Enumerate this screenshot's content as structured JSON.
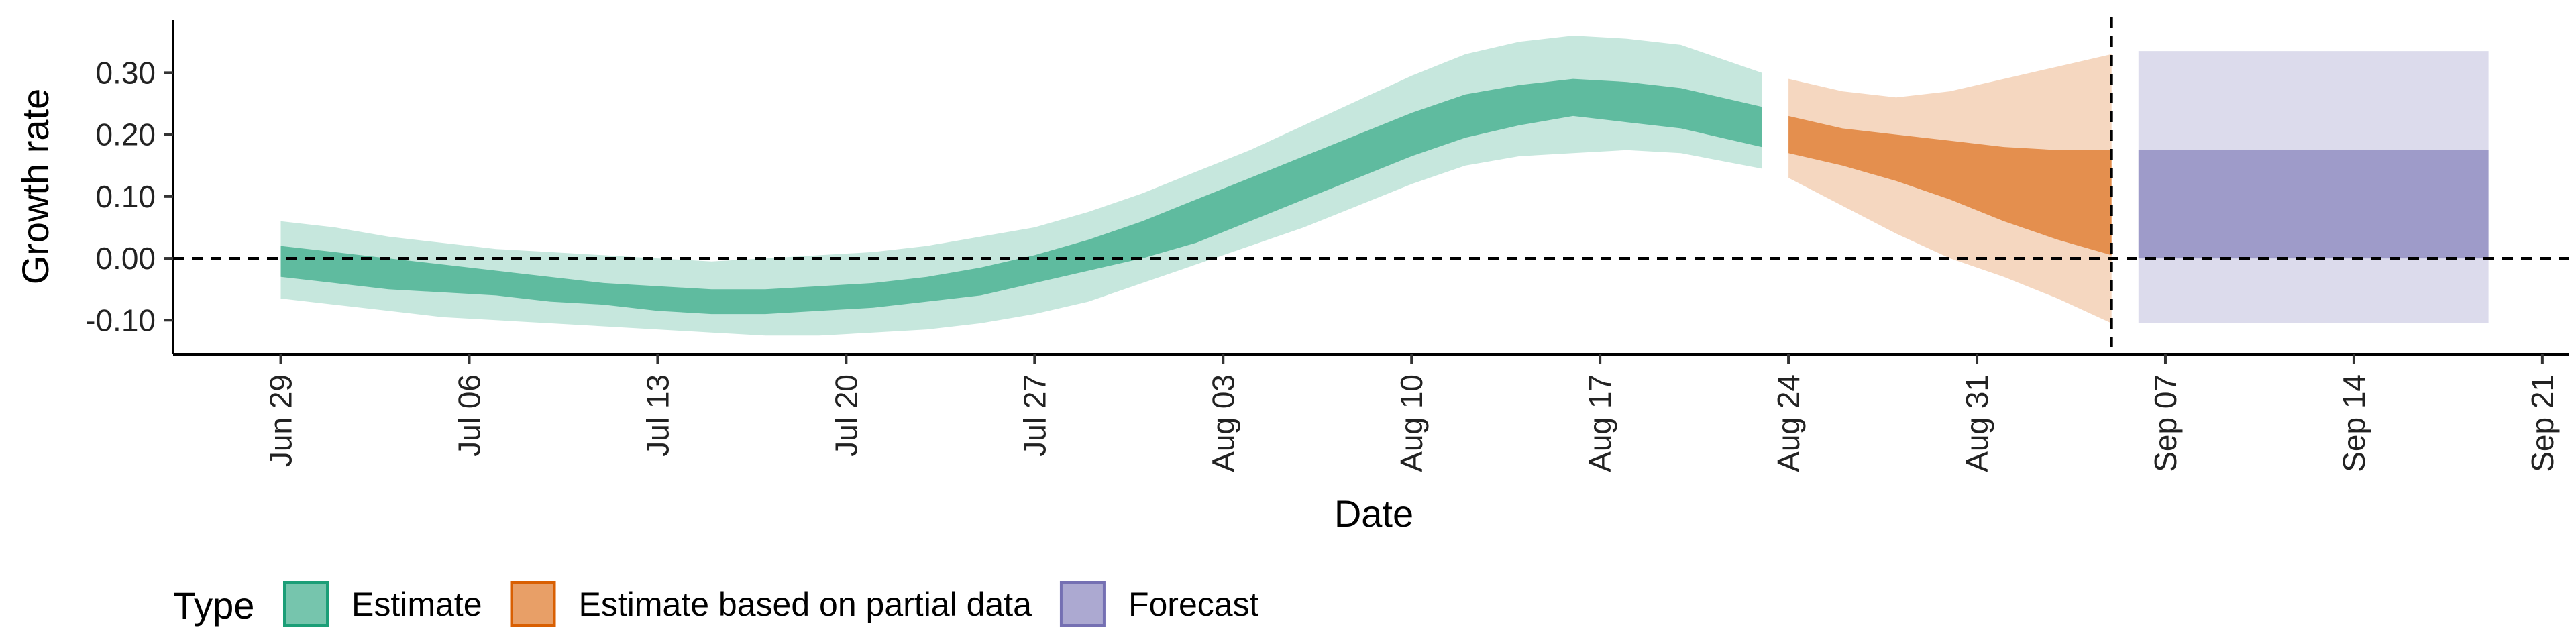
{
  "chart_data": {
    "type": "area",
    "xlabel": "Date",
    "ylabel": "Growth rate",
    "x_ticks": [
      "Jun 29",
      "Jul 06",
      "Jul 13",
      "Jul 20",
      "Jul 27",
      "Aug 03",
      "Aug 10",
      "Aug 17",
      "Aug 24",
      "Aug 31",
      "Sep 07",
      "Sep 14",
      "Sep 21"
    ],
    "y_ticks": [
      "-0.10",
      "0.00",
      "0.10",
      "0.20",
      "0.30"
    ],
    "xlim": [
      "2020-06-25",
      "2020-09-22"
    ],
    "ylim": [
      -0.155,
      0.385
    ],
    "reference_lines": {
      "horizontal_y": 0.0,
      "vertical_x": "2020-09-05"
    },
    "legend": {
      "title": "Type",
      "position": "bottom-left",
      "items": [
        {
          "label": "Estimate",
          "color": "#1b9e77"
        },
        {
          "label": "Estimate based on partial data",
          "color": "#d95f02"
        },
        {
          "label": "Forecast",
          "color": "#7570b3"
        }
      ]
    },
    "series": [
      {
        "type_label": "Estimate",
        "color": "#1b9e77",
        "x": [
          "2020-06-29",
          "2020-07-01",
          "2020-07-03",
          "2020-07-05",
          "2020-07-07",
          "2020-07-09",
          "2020-07-11",
          "2020-07-13",
          "2020-07-15",
          "2020-07-17",
          "2020-07-19",
          "2020-07-21",
          "2020-07-23",
          "2020-07-25",
          "2020-07-27",
          "2020-07-29",
          "2020-07-31",
          "2020-08-02",
          "2020-08-04",
          "2020-08-06",
          "2020-08-08",
          "2020-08-10",
          "2020-08-12",
          "2020-08-14",
          "2020-08-16",
          "2020-08-18",
          "2020-08-20",
          "2020-08-23"
        ],
        "lower_90": [
          -0.065,
          -0.075,
          -0.085,
          -0.095,
          -0.1,
          -0.105,
          -0.11,
          -0.115,
          -0.12,
          -0.125,
          -0.125,
          -0.12,
          -0.115,
          -0.105,
          -0.09,
          -0.07,
          -0.04,
          -0.01,
          0.02,
          0.05,
          0.085,
          0.12,
          0.15,
          0.165,
          0.17,
          0.175,
          0.17,
          0.145
        ],
        "lower_50": [
          -0.03,
          -0.04,
          -0.05,
          -0.055,
          -0.06,
          -0.07,
          -0.075,
          -0.085,
          -0.09,
          -0.09,
          -0.085,
          -0.08,
          -0.07,
          -0.06,
          -0.04,
          -0.02,
          0.0,
          0.025,
          0.06,
          0.095,
          0.13,
          0.165,
          0.195,
          0.215,
          0.23,
          0.22,
          0.21,
          0.18
        ],
        "upper_50": [
          0.02,
          0.01,
          0.0,
          -0.01,
          -0.02,
          -0.03,
          -0.04,
          -0.045,
          -0.05,
          -0.05,
          -0.045,
          -0.04,
          -0.03,
          -0.015,
          0.005,
          0.03,
          0.06,
          0.095,
          0.13,
          0.165,
          0.2,
          0.235,
          0.265,
          0.28,
          0.29,
          0.285,
          0.275,
          0.245
        ],
        "upper_90": [
          0.06,
          0.05,
          0.035,
          0.025,
          0.015,
          0.01,
          0.005,
          0.0,
          -0.005,
          0.0,
          0.005,
          0.01,
          0.02,
          0.035,
          0.05,
          0.075,
          0.105,
          0.14,
          0.175,
          0.215,
          0.255,
          0.295,
          0.33,
          0.35,
          0.36,
          0.355,
          0.345,
          0.3
        ]
      },
      {
        "type_label": "Estimate based on partial data",
        "color": "#d95f02",
        "x": [
          "2020-08-24",
          "2020-08-26",
          "2020-08-28",
          "2020-08-30",
          "2020-09-01",
          "2020-09-03",
          "2020-09-05"
        ],
        "lower_90": [
          0.13,
          0.085,
          0.04,
          0.0,
          -0.03,
          -0.065,
          -0.105
        ],
        "lower_50": [
          0.17,
          0.15,
          0.125,
          0.095,
          0.06,
          0.03,
          0.005
        ],
        "upper_50": [
          0.23,
          0.21,
          0.2,
          0.19,
          0.18,
          0.175,
          0.175
        ],
        "upper_90": [
          0.29,
          0.27,
          0.26,
          0.27,
          0.29,
          0.31,
          0.33
        ]
      },
      {
        "type_label": "Forecast",
        "color": "#7570b3",
        "x": [
          "2020-09-06",
          "2020-09-19"
        ],
        "lower_90": [
          -0.105,
          -0.105
        ],
        "lower_50": [
          0.0,
          0.0
        ],
        "upper_50": [
          0.175,
          0.175
        ],
        "upper_90": [
          0.335,
          0.335
        ]
      }
    ]
  }
}
